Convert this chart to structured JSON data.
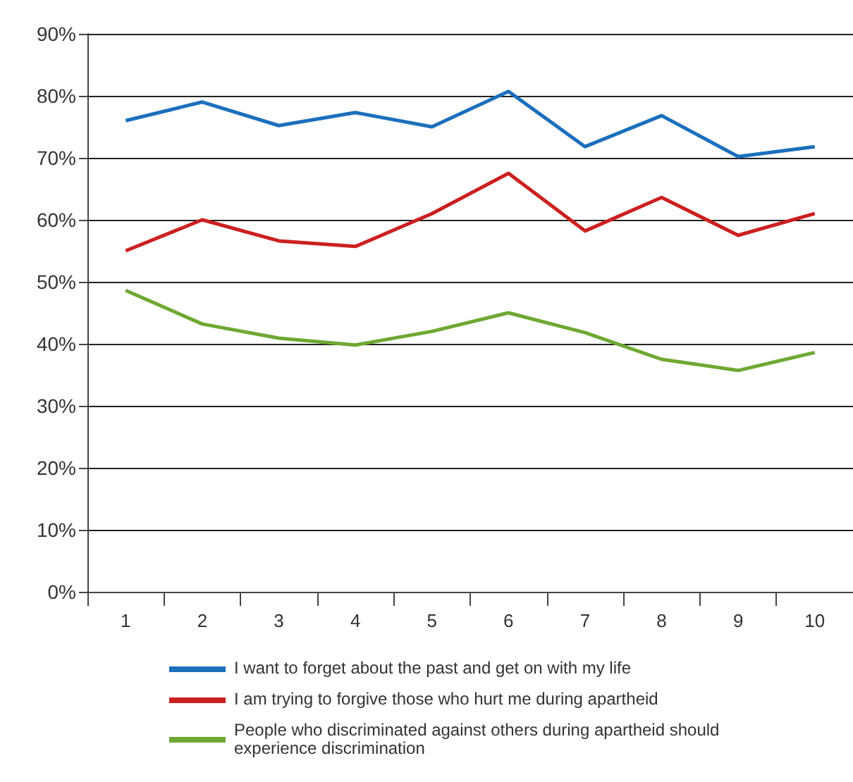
{
  "chart_data": {
    "type": "line",
    "categories": [
      "1",
      "2",
      "3",
      "4",
      "5",
      "6",
      "7",
      "8",
      "9",
      "10"
    ],
    "series": [
      {
        "name": "I want to forget about the past and get on with my life",
        "color": "#1b6fbd",
        "values": [
          76,
          79,
          75.2,
          77.3,
          75,
          80.7,
          71.8,
          76.8,
          70.2,
          71.8
        ]
      },
      {
        "name": "I am trying to forgive those who hurt me during apartheid",
        "color": "#cc1f1f",
        "values": [
          55,
          60,
          56.6,
          55.7,
          61,
          67.5,
          58.2,
          63.6,
          57.5,
          61
        ]
      },
      {
        "name": "People who discriminated against others during apartheid should experience discrimination",
        "color": "#6fa832",
        "values": [
          48.6,
          43.2,
          40.9,
          39.8,
          42,
          45,
          41.8,
          37.5,
          35.7,
          38.6
        ]
      }
    ],
    "ylim": [
      0,
      90
    ],
    "yticks": [
      {
        "value": 0,
        "label": "0%"
      },
      {
        "value": 10,
        "label": "10%"
      },
      {
        "value": 20,
        "label": "20%"
      },
      {
        "value": 30,
        "label": "30%"
      },
      {
        "value": 40,
        "label": "40%"
      },
      {
        "value": 50,
        "label": "50%"
      },
      {
        "value": 60,
        "label": "60%"
      },
      {
        "value": 70,
        "label": "70%"
      },
      {
        "value": 80,
        "label": "80%"
      },
      {
        "value": 90,
        "label": "90%"
      }
    ],
    "grid": "y",
    "legend": "bottom",
    "marker": "none",
    "line_style": "solid"
  }
}
